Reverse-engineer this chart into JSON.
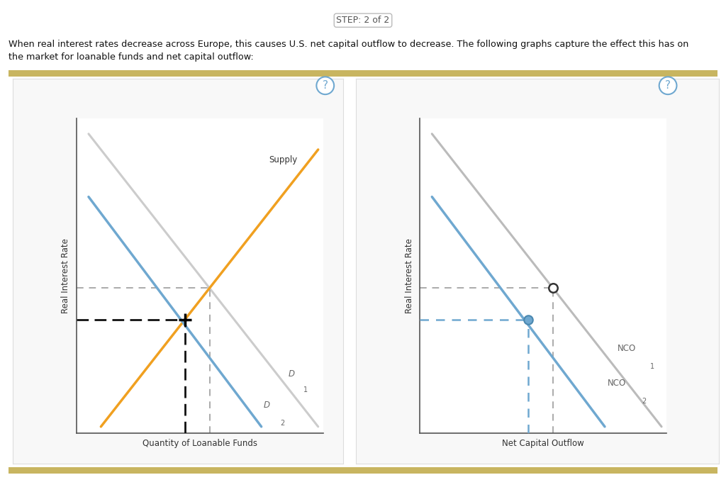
{
  "title_step": "STEP: 2 of 2",
  "desc1": "When real interest rates decrease across Europe, this causes U.S. net capital outflow to decrease. The following graphs capture the effect this has on",
  "desc2": "the market for loanable funds and net capital outflow:",
  "bg_color": "#ffffff",
  "gold_color": "#c8b560",
  "panel_bg": "#f8f8f8",
  "panel_border": "#dddddd",
  "chart1": {
    "xlabel": "Quantity of Loanable Funds",
    "ylabel": "Real Interest Rate",
    "supply_color": "#f0a020",
    "d1_color": "#cccccc",
    "d2_color": "#6fa8d0",
    "supply_label": "Supply",
    "d1_label": "D",
    "d1_sub": "1",
    "d2_label": "D",
    "d2_sub": "2"
  },
  "chart2": {
    "xlabel": "Net Capital Outflow",
    "ylabel": "Real Interest Rate",
    "nco1_color": "#bbbbbb",
    "nco2_color": "#6fa8d0",
    "nco1_label": "NCO",
    "nco1_sub": "1",
    "nco2_label": "NCO",
    "nco2_sub": "2",
    "dot_open_color": "#ffffff",
    "dot_filled_color": "#6fa8d0"
  },
  "question_color": "#6fa8d0"
}
